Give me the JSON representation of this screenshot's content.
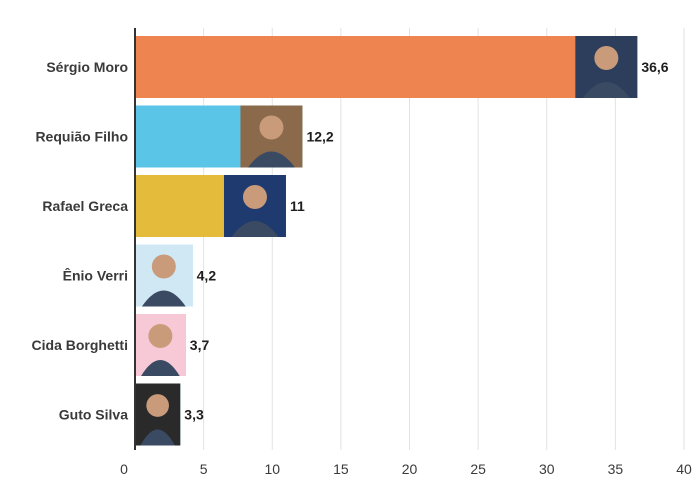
{
  "chart_data": {
    "type": "bar",
    "orientation": "horizontal",
    "categories": [
      "Sérgio Moro",
      "Requião Filho",
      "Rafael Greca",
      "Ênio Verri",
      "Cida Borghetti",
      "Guto Silva"
    ],
    "values": [
      36.6,
      12.2,
      11,
      4.2,
      3.7,
      3.3
    ],
    "value_labels": [
      "36,6",
      "12,2",
      "11",
      "4,2",
      "3,7",
      "3,3"
    ],
    "bar_colors": [
      "#ee8550",
      "#5bc5e8",
      "#e5bb3c",
      "#5bc5e8",
      "#5bc5e8",
      "#5bc5e8"
    ],
    "portrait_colors": [
      "#2c3e5c",
      "#8a6a4a",
      "#1f3a6e",
      "#cfe8f3",
      "#f7c9d6",
      "#2a2a2a"
    ],
    "xlim": [
      0,
      40
    ],
    "xticks": [
      "0",
      "5",
      "10",
      "15",
      "20",
      "25",
      "30",
      "35",
      "40"
    ],
    "grid": true,
    "title": "",
    "xlabel": "",
    "ylabel": ""
  }
}
